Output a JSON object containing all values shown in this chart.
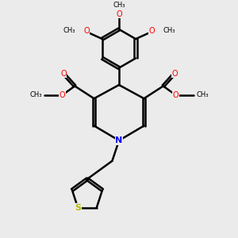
{
  "background_color": "#ebebeb",
  "bond_color": "#000000",
  "oxygen_color": "#ff0000",
  "nitrogen_color": "#0000ff",
  "sulfur_color": "#b8b800",
  "line_width": 1.8,
  "figsize": [
    3.0,
    3.0
  ],
  "dpi": 100,
  "xlim": [
    0,
    10
  ],
  "ylim": [
    0,
    10
  ]
}
